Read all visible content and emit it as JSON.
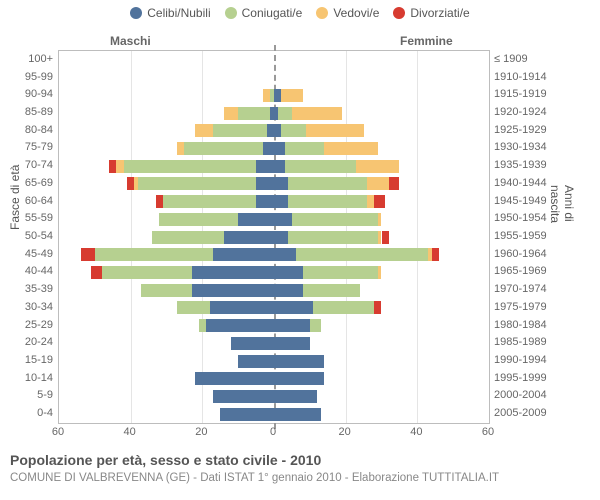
{
  "legend": {
    "items": [
      {
        "label": "Celibi/Nubili",
        "color": "#51739c"
      },
      {
        "label": "Coniugati/e",
        "color": "#b6d090"
      },
      {
        "label": "Vedovi/e",
        "color": "#f7c572"
      },
      {
        "label": "Divorziati/e",
        "color": "#d73b30"
      }
    ]
  },
  "side_labels": {
    "male": "Maschi",
    "female": "Femmine"
  },
  "axes": {
    "left_title": "Fasce di età",
    "right_title": "Anni di nascita",
    "x_max": 60,
    "x_ticks": [
      60,
      40,
      20,
      0,
      20,
      40,
      60
    ]
  },
  "colors": {
    "single": "#51739c",
    "married": "#b6d090",
    "widowed": "#f7c572",
    "divorced": "#d73b30",
    "grid": "#e5e5e5",
    "border": "#bdbdbd",
    "bg": "#ffffff"
  },
  "age_bands": [
    "0-4",
    "5-9",
    "10-14",
    "15-19",
    "20-24",
    "25-29",
    "30-34",
    "35-39",
    "40-44",
    "45-49",
    "50-54",
    "55-59",
    "60-64",
    "65-69",
    "70-74",
    "75-79",
    "80-84",
    "85-89",
    "90-94",
    "95-99",
    "100+"
  ],
  "birth_bands": [
    "2005-2009",
    "2000-2004",
    "1995-1999",
    "1990-1994",
    "1985-1989",
    "1980-1984",
    "1975-1979",
    "1970-1974",
    "1965-1969",
    "1960-1964",
    "1955-1959",
    "1950-1954",
    "1945-1949",
    "1940-1944",
    "1935-1939",
    "1930-1934",
    "1925-1929",
    "1920-1924",
    "1915-1919",
    "1910-1914",
    "≤ 1909"
  ],
  "pyramid": [
    {
      "age": "0-4",
      "m": {
        "single": 15,
        "married": 0,
        "widowed": 0,
        "divorced": 0
      },
      "f": {
        "single": 13,
        "married": 0,
        "widowed": 0,
        "divorced": 0
      }
    },
    {
      "age": "5-9",
      "m": {
        "single": 17,
        "married": 0,
        "widowed": 0,
        "divorced": 0
      },
      "f": {
        "single": 12,
        "married": 0,
        "widowed": 0,
        "divorced": 0
      }
    },
    {
      "age": "10-14",
      "m": {
        "single": 22,
        "married": 0,
        "widowed": 0,
        "divorced": 0
      },
      "f": {
        "single": 14,
        "married": 0,
        "widowed": 0,
        "divorced": 0
      }
    },
    {
      "age": "15-19",
      "m": {
        "single": 10,
        "married": 0,
        "widowed": 0,
        "divorced": 0
      },
      "f": {
        "single": 14,
        "married": 0,
        "widowed": 0,
        "divorced": 0
      }
    },
    {
      "age": "20-24",
      "m": {
        "single": 12,
        "married": 0,
        "widowed": 0,
        "divorced": 0
      },
      "f": {
        "single": 10,
        "married": 0,
        "widowed": 0,
        "divorced": 0
      }
    },
    {
      "age": "25-29",
      "m": {
        "single": 19,
        "married": 2,
        "widowed": 0,
        "divorced": 0
      },
      "f": {
        "single": 10,
        "married": 3,
        "widowed": 0,
        "divorced": 0
      }
    },
    {
      "age": "30-34",
      "m": {
        "single": 18,
        "married": 9,
        "widowed": 0,
        "divorced": 0
      },
      "f": {
        "single": 11,
        "married": 17,
        "widowed": 0,
        "divorced": 2
      }
    },
    {
      "age": "35-39",
      "m": {
        "single": 23,
        "married": 14,
        "widowed": 0,
        "divorced": 0
      },
      "f": {
        "single": 8,
        "married": 16,
        "widowed": 0,
        "divorced": 0
      }
    },
    {
      "age": "40-44",
      "m": {
        "single": 23,
        "married": 25,
        "widowed": 0,
        "divorced": 3
      },
      "f": {
        "single": 8,
        "married": 21,
        "widowed": 1,
        "divorced": 0
      }
    },
    {
      "age": "45-49",
      "m": {
        "single": 17,
        "married": 33,
        "widowed": 0,
        "divorced": 4
      },
      "f": {
        "single": 6,
        "married": 37,
        "widowed": 1,
        "divorced": 2
      }
    },
    {
      "age": "50-54",
      "m": {
        "single": 14,
        "married": 20,
        "widowed": 0,
        "divorced": 0
      },
      "f": {
        "single": 4,
        "married": 25,
        "widowed": 1,
        "divorced": 2
      }
    },
    {
      "age": "55-59",
      "m": {
        "single": 10,
        "married": 22,
        "widowed": 0,
        "divorced": 0
      },
      "f": {
        "single": 5,
        "married": 24,
        "widowed": 1,
        "divorced": 0
      }
    },
    {
      "age": "60-64",
      "m": {
        "single": 5,
        "married": 26,
        "widowed": 0,
        "divorced": 2
      },
      "f": {
        "single": 4,
        "married": 22,
        "widowed": 2,
        "divorced": 3
      }
    },
    {
      "age": "65-69",
      "m": {
        "single": 5,
        "married": 33,
        "widowed": 1,
        "divorced": 2
      },
      "f": {
        "single": 4,
        "married": 22,
        "widowed": 6,
        "divorced": 3
      }
    },
    {
      "age": "70-74",
      "m": {
        "single": 5,
        "married": 37,
        "widowed": 2,
        "divorced": 2
      },
      "f": {
        "single": 3,
        "married": 20,
        "widowed": 12,
        "divorced": 0
      }
    },
    {
      "age": "75-79",
      "m": {
        "single": 3,
        "married": 22,
        "widowed": 2,
        "divorced": 0
      },
      "f": {
        "single": 3,
        "married": 11,
        "widowed": 15,
        "divorced": 0
      }
    },
    {
      "age": "80-84",
      "m": {
        "single": 2,
        "married": 15,
        "widowed": 5,
        "divorced": 0
      },
      "f": {
        "single": 2,
        "married": 7,
        "widowed": 16,
        "divorced": 0
      }
    },
    {
      "age": "85-89",
      "m": {
        "single": 1,
        "married": 9,
        "widowed": 4,
        "divorced": 0
      },
      "f": {
        "single": 1,
        "married": 4,
        "widowed": 14,
        "divorced": 0
      }
    },
    {
      "age": "90-94",
      "m": {
        "single": 0,
        "married": 1,
        "widowed": 2,
        "divorced": 0
      },
      "f": {
        "single": 2,
        "married": 0,
        "widowed": 6,
        "divorced": 0
      }
    },
    {
      "age": "95-99",
      "m": {
        "single": 0,
        "married": 0,
        "widowed": 0,
        "divorced": 0
      },
      "f": {
        "single": 0,
        "married": 0,
        "widowed": 0,
        "divorced": 0
      }
    },
    {
      "age": "100+",
      "m": {
        "single": 0,
        "married": 0,
        "widowed": 0,
        "divorced": 0
      },
      "f": {
        "single": 0,
        "married": 0,
        "widowed": 0,
        "divorced": 0
      }
    }
  ],
  "title": "Popolazione per età, sesso e stato civile - 2010",
  "subtitle": "COMUNE DI VALBREVENNA (GE) - Dati ISTAT 1° gennaio 2010 - Elaborazione TUTTITALIA.IT"
}
